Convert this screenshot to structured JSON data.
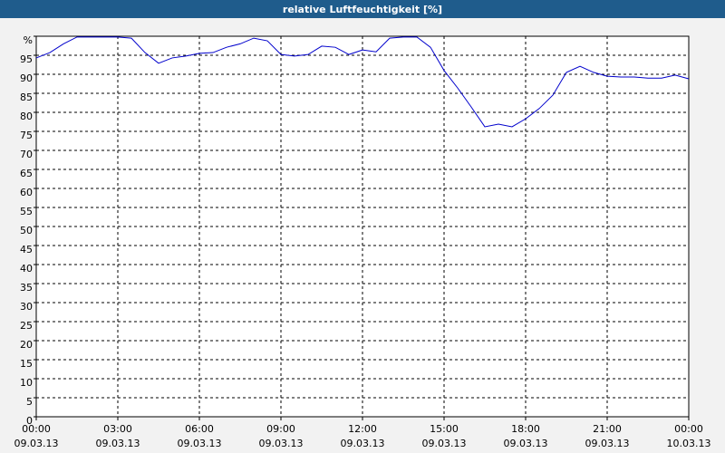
{
  "chart_data": {
    "type": "line",
    "title": "relative Luftfeuchtigkeit [%]",
    "x": [
      0,
      0.5,
      1,
      1.5,
      2,
      2.5,
      3,
      3.5,
      4,
      4.5,
      5,
      5.5,
      6,
      6.5,
      7,
      7.5,
      8,
      8.5,
      9,
      9.5,
      10,
      10.5,
      11,
      11.5,
      12,
      12.5,
      13,
      13.5,
      14,
      14.5,
      15,
      15.5,
      16,
      16.5,
      17,
      17.5,
      18,
      18.5,
      19,
      19.5,
      20,
      20.5,
      21,
      21.5,
      22,
      22.5,
      23,
      23.5,
      24
    ],
    "series": [
      {
        "name": "relative Luftfeuchtigkeit",
        "color": "#0000cc",
        "values": [
          94.3,
          95.7,
          98,
          99.8,
          99.8,
          99.8,
          99.8,
          99.5,
          95.7,
          92.9,
          94.3,
          94.8,
          95.5,
          95.7,
          97.1,
          98,
          99.5,
          98.8,
          95.2,
          94.8,
          95.2,
          97.4,
          97.1,
          95.2,
          96.4,
          95.9,
          99.5,
          99.8,
          99.8,
          97.1,
          91,
          86.4,
          81.4,
          76.2,
          76.9,
          76.2,
          78.3,
          81,
          84.5,
          90.5,
          92.1,
          90.5,
          89.5,
          89.3,
          89.3,
          89,
          89,
          89.8,
          88.8
        ]
      }
    ],
    "xlim": [
      0,
      24
    ],
    "xticks": [
      {
        "value": 0,
        "label": "00:00"
      },
      {
        "value": 3,
        "label": "03:00"
      },
      {
        "value": 6,
        "label": "06:00"
      },
      {
        "value": 9,
        "label": "09:00"
      },
      {
        "value": 12,
        "label": "12:00"
      },
      {
        "value": 15,
        "label": "15:00"
      },
      {
        "value": 18,
        "label": "18:00"
      },
      {
        "value": 21,
        "label": "21:00"
      },
      {
        "value": 24,
        "label": "00:00"
      }
    ],
    "xtick_dates": [
      "09.03.13",
      "09.03.13",
      "09.03.13",
      "09.03.13",
      "09.03.13",
      "09.03.13",
      "09.03.13",
      "09.03.13",
      "10.03.13"
    ],
    "ylim": [
      0,
      100
    ],
    "yticks": [
      0,
      5,
      10,
      15,
      20,
      25,
      30,
      35,
      40,
      45,
      50,
      55,
      60,
      65,
      70,
      75,
      80,
      85,
      90,
      95,
      {
        "value": 100,
        "label": "%"
      }
    ],
    "grid": true
  }
}
